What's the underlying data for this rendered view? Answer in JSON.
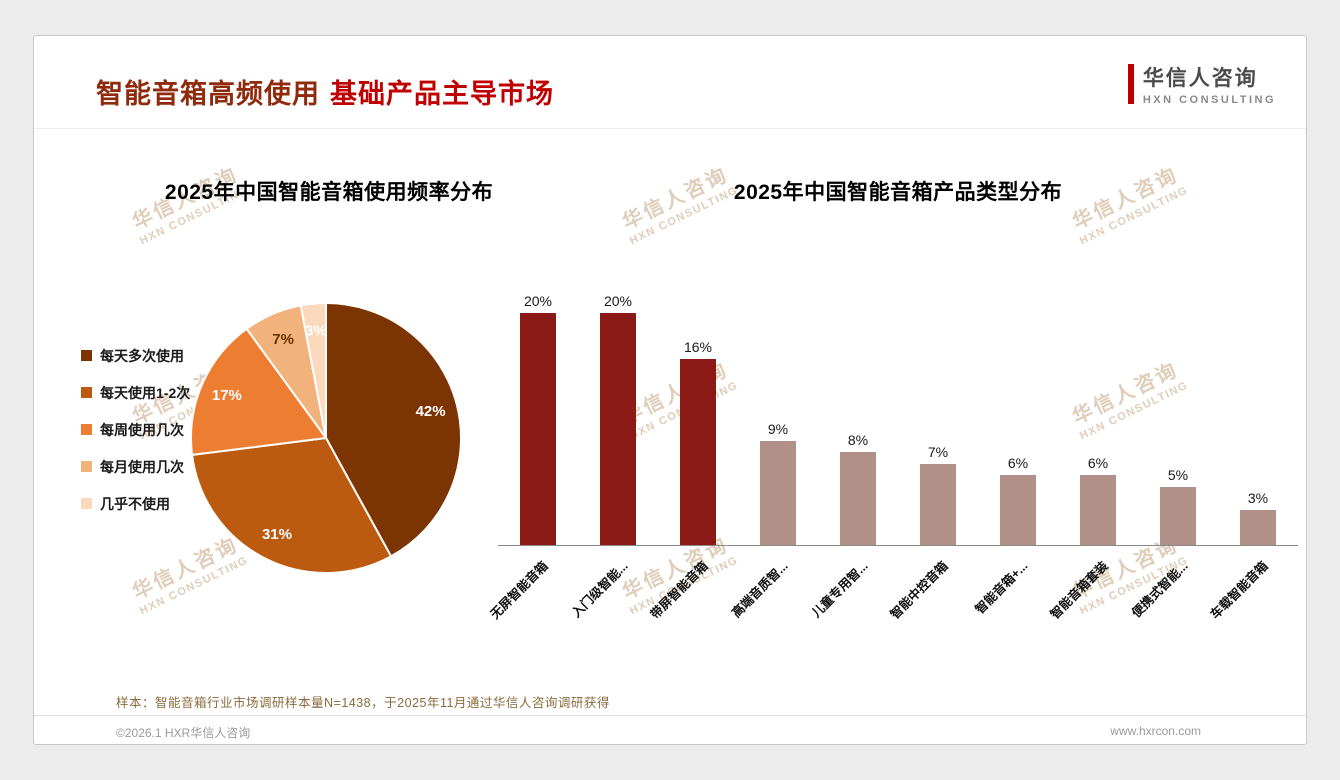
{
  "slide": {
    "title_part1": "智能音箱高频使用",
    "title_part2": "基础产品主导市场",
    "logo": {
      "cn": "华信人咨询",
      "en": "HXN CONSULTING"
    },
    "watermark": {
      "cn": "华信人咨询",
      "en": "HXN CONSULTING"
    },
    "note": "样本：智能音箱行业市场调研样本量N=1438，于2025年11月通过华信人咨询调研获得",
    "footer_left": "©2026.1 HXR华信人咨询",
    "footer_right": "www.hxrcon.com"
  },
  "colors": {
    "accent_red": "#C00000",
    "title_brown": "#8F2A0C",
    "bar_highlight": "#8B1A17",
    "bar_muted": "#B1908A",
    "watermark": "#C4A480"
  },
  "chart_data": [
    {
      "type": "pie",
      "title": "2025年中国智能音箱使用频率分布",
      "labels": [
        "每天多次使用",
        "每天使用1-2次",
        "每周使用几次",
        "每月使用几次",
        "几乎不使用"
      ],
      "values": [
        42,
        31,
        17,
        7,
        3
      ],
      "value_suffix": "%",
      "colors": [
        "#7D3403",
        "#BC5A10",
        "#ED7D31",
        "#F2B27C",
        "#FAD9BD"
      ],
      "label_colors": [
        "#ffffff",
        "#ffffff",
        "#ffffff",
        "#663300",
        "#ffffff"
      ],
      "legend_position": "left",
      "start_angle_deg": -90,
      "direction": "clockwise"
    },
    {
      "type": "bar",
      "title": "2025年中国智能音箱产品类型分布",
      "categories": [
        "无屏智能音箱",
        "入门级智能...",
        "带屏智能音箱",
        "高端音质智...",
        "儿童专用智...",
        "智能中控音箱",
        "智能音箱+...",
        "智能音箱套装",
        "便携式智能...",
        "车载智能音箱"
      ],
      "values": [
        20,
        20,
        16,
        9,
        8,
        7,
        6,
        6,
        5,
        3
      ],
      "value_suffix": "%",
      "bar_colors": [
        "#8B1A17",
        "#8B1A17",
        "#8B1A17",
        "#B1908A",
        "#B1908A",
        "#B1908A",
        "#B1908A",
        "#B1908A",
        "#B1908A",
        "#B1908A"
      ],
      "ylim": [
        0,
        20
      ],
      "grid": false,
      "xlabel": "",
      "ylabel": ""
    }
  ]
}
